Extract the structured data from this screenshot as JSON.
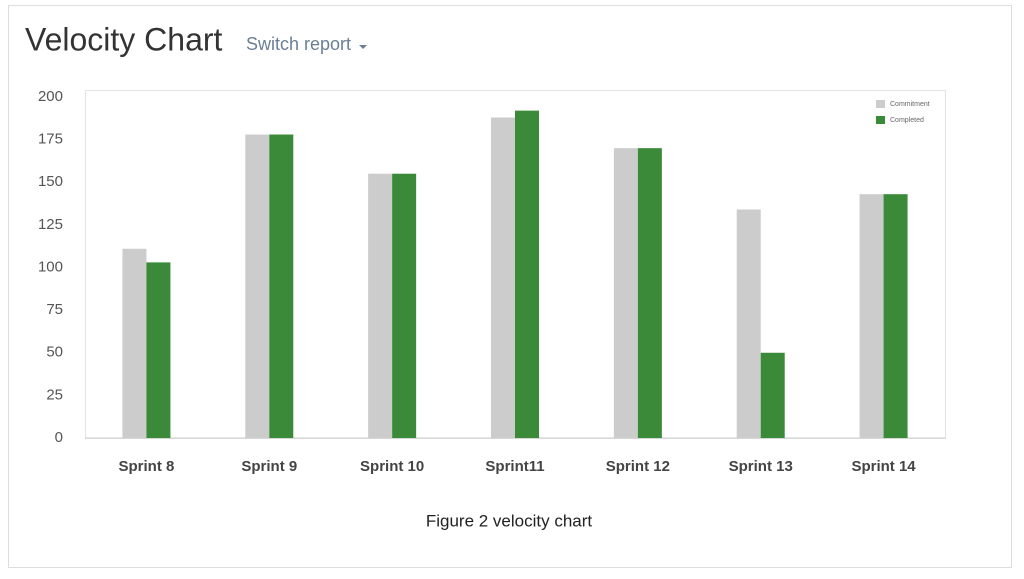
{
  "chart_data": {
    "type": "bar",
    "title": "Velocity Chart",
    "categories": [
      "Sprint 8",
      "Sprint 9",
      "Sprint 10",
      "Sprint11",
      "Sprint 12",
      "Sprint 13",
      "Sprint 14"
    ],
    "series": [
      {
        "name": "Commitment",
        "color": "#cccccc",
        "values": [
          111,
          178,
          155,
          188,
          170,
          134,
          143
        ]
      },
      {
        "name": "Completed",
        "color": "#3a8a3a",
        "values": [
          103,
          178,
          155,
          192,
          170,
          50,
          143
        ]
      }
    ],
    "ylim": [
      0,
      200
    ],
    "yticks": [
      0,
      25,
      50,
      75,
      100,
      125,
      150,
      175,
      200
    ],
    "grid": false,
    "legend": "top-right"
  },
  "header": {
    "link": "Switch report"
  },
  "caption": "Figure 2 velocity chart"
}
